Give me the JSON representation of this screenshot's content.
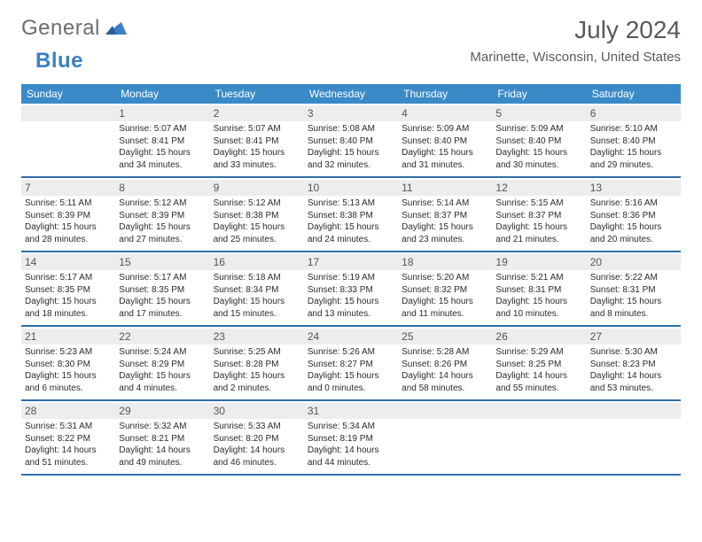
{
  "logo": {
    "general": "General",
    "blue": "Blue"
  },
  "title": "July 2024",
  "location": "Marinette, Wisconsin, United States",
  "colors": {
    "header_bg": "#3a8ac8",
    "header_text": "#ffffff",
    "week_border": "#2f6ea8",
    "daynum_bg": "#eceded",
    "text": "#2b2b2b",
    "logo_gray": "#6d6d6d",
    "logo_blue": "#3a7fc4"
  },
  "typography": {
    "title_fontsize": 28,
    "dow_fontsize": 12,
    "info_fontsize": 10
  },
  "daysOfWeek": [
    "Sunday",
    "Monday",
    "Tuesday",
    "Wednesday",
    "Thursday",
    "Friday",
    "Saturday"
  ],
  "startOffset": 1,
  "days": [
    {
      "n": 1,
      "sunrise": "5:07 AM",
      "sunset": "8:41 PM",
      "daylight": "15 hours and 34 minutes."
    },
    {
      "n": 2,
      "sunrise": "5:07 AM",
      "sunset": "8:41 PM",
      "daylight": "15 hours and 33 minutes."
    },
    {
      "n": 3,
      "sunrise": "5:08 AM",
      "sunset": "8:40 PM",
      "daylight": "15 hours and 32 minutes."
    },
    {
      "n": 4,
      "sunrise": "5:09 AM",
      "sunset": "8:40 PM",
      "daylight": "15 hours and 31 minutes."
    },
    {
      "n": 5,
      "sunrise": "5:09 AM",
      "sunset": "8:40 PM",
      "daylight": "15 hours and 30 minutes."
    },
    {
      "n": 6,
      "sunrise": "5:10 AM",
      "sunset": "8:40 PM",
      "daylight": "15 hours and 29 minutes."
    },
    {
      "n": 7,
      "sunrise": "5:11 AM",
      "sunset": "8:39 PM",
      "daylight": "15 hours and 28 minutes."
    },
    {
      "n": 8,
      "sunrise": "5:12 AM",
      "sunset": "8:39 PM",
      "daylight": "15 hours and 27 minutes."
    },
    {
      "n": 9,
      "sunrise": "5:12 AM",
      "sunset": "8:38 PM",
      "daylight": "15 hours and 25 minutes."
    },
    {
      "n": 10,
      "sunrise": "5:13 AM",
      "sunset": "8:38 PM",
      "daylight": "15 hours and 24 minutes."
    },
    {
      "n": 11,
      "sunrise": "5:14 AM",
      "sunset": "8:37 PM",
      "daylight": "15 hours and 23 minutes."
    },
    {
      "n": 12,
      "sunrise": "5:15 AM",
      "sunset": "8:37 PM",
      "daylight": "15 hours and 21 minutes."
    },
    {
      "n": 13,
      "sunrise": "5:16 AM",
      "sunset": "8:36 PM",
      "daylight": "15 hours and 20 minutes."
    },
    {
      "n": 14,
      "sunrise": "5:17 AM",
      "sunset": "8:35 PM",
      "daylight": "15 hours and 18 minutes."
    },
    {
      "n": 15,
      "sunrise": "5:17 AM",
      "sunset": "8:35 PM",
      "daylight": "15 hours and 17 minutes."
    },
    {
      "n": 16,
      "sunrise": "5:18 AM",
      "sunset": "8:34 PM",
      "daylight": "15 hours and 15 minutes."
    },
    {
      "n": 17,
      "sunrise": "5:19 AM",
      "sunset": "8:33 PM",
      "daylight": "15 hours and 13 minutes."
    },
    {
      "n": 18,
      "sunrise": "5:20 AM",
      "sunset": "8:32 PM",
      "daylight": "15 hours and 11 minutes."
    },
    {
      "n": 19,
      "sunrise": "5:21 AM",
      "sunset": "8:31 PM",
      "daylight": "15 hours and 10 minutes."
    },
    {
      "n": 20,
      "sunrise": "5:22 AM",
      "sunset": "8:31 PM",
      "daylight": "15 hours and 8 minutes."
    },
    {
      "n": 21,
      "sunrise": "5:23 AM",
      "sunset": "8:30 PM",
      "daylight": "15 hours and 6 minutes."
    },
    {
      "n": 22,
      "sunrise": "5:24 AM",
      "sunset": "8:29 PM",
      "daylight": "15 hours and 4 minutes."
    },
    {
      "n": 23,
      "sunrise": "5:25 AM",
      "sunset": "8:28 PM",
      "daylight": "15 hours and 2 minutes."
    },
    {
      "n": 24,
      "sunrise": "5:26 AM",
      "sunset": "8:27 PM",
      "daylight": "15 hours and 0 minutes."
    },
    {
      "n": 25,
      "sunrise": "5:28 AM",
      "sunset": "8:26 PM",
      "daylight": "14 hours and 58 minutes."
    },
    {
      "n": 26,
      "sunrise": "5:29 AM",
      "sunset": "8:25 PM",
      "daylight": "14 hours and 55 minutes."
    },
    {
      "n": 27,
      "sunrise": "5:30 AM",
      "sunset": "8:23 PM",
      "daylight": "14 hours and 53 minutes."
    },
    {
      "n": 28,
      "sunrise": "5:31 AM",
      "sunset": "8:22 PM",
      "daylight": "14 hours and 51 minutes."
    },
    {
      "n": 29,
      "sunrise": "5:32 AM",
      "sunset": "8:21 PM",
      "daylight": "14 hours and 49 minutes."
    },
    {
      "n": 30,
      "sunrise": "5:33 AM",
      "sunset": "8:20 PM",
      "daylight": "14 hours and 46 minutes."
    },
    {
      "n": 31,
      "sunrise": "5:34 AM",
      "sunset": "8:19 PM",
      "daylight": "14 hours and 44 minutes."
    }
  ]
}
